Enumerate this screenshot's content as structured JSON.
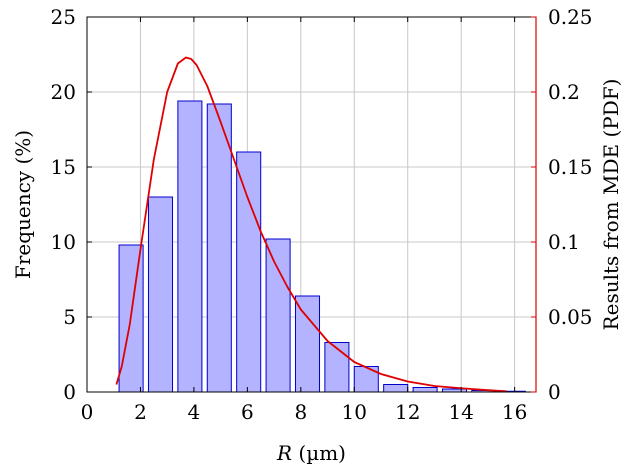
{
  "chart_data": {
    "type": "bar",
    "xlabel_italic": "R",
    "xlabel_unit": " (µm)",
    "ylabel_left": "Frequency (%)",
    "ylabel_right": "Results from MDE (PDF)",
    "xlim": [
      0,
      16.8
    ],
    "ylim_left": [
      0,
      25
    ],
    "ylim_right": [
      0,
      0.25
    ],
    "x_ticks": [
      0,
      2,
      4,
      6,
      8,
      10,
      12,
      14,
      16
    ],
    "y_left_ticks": [
      0,
      5,
      10,
      15,
      20,
      25
    ],
    "y_right_ticks": [
      "0",
      "0.05",
      "0.1",
      "0.15",
      "0.2",
      "0.25"
    ],
    "y_right_tick_values": [
      0,
      0.05,
      0.1,
      0.15,
      0.2,
      0.25
    ],
    "grid": true,
    "series": [
      {
        "type": "bar",
        "bar_width": 0.9,
        "x": [
          1.65,
          2.75,
          3.85,
          4.95,
          6.05,
          7.15,
          8.25,
          9.35,
          10.45,
          11.55,
          12.65,
          13.75,
          14.85,
          15.95
        ],
        "values": [
          9.8,
          13.0,
          19.4,
          19.2,
          16.0,
          10.2,
          6.4,
          3.3,
          1.7,
          0.5,
          0.3,
          0.2,
          0.1,
          0.05
        ],
        "color": "#b3b3ff",
        "edge_color": "#0000cc"
      },
      {
        "type": "line",
        "axis": "right",
        "color": "#e00000",
        "x": [
          1.1,
          1.3,
          1.6,
          2.0,
          2.5,
          3.0,
          3.4,
          3.7,
          3.9,
          4.1,
          4.5,
          5.0,
          5.5,
          6.0,
          6.5,
          7.0,
          7.5,
          8.0,
          9.0,
          10.0,
          11.0,
          12.0,
          13.0,
          14.0,
          15.0,
          15.7
        ],
        "y": [
          0.005,
          0.017,
          0.045,
          0.095,
          0.155,
          0.2,
          0.219,
          0.223,
          0.222,
          0.218,
          0.204,
          0.18,
          0.155,
          0.13,
          0.107,
          0.087,
          0.07,
          0.055,
          0.034,
          0.02,
          0.012,
          0.007,
          0.004,
          0.0025,
          0.0012,
          0.0005
        ]
      }
    ]
  }
}
